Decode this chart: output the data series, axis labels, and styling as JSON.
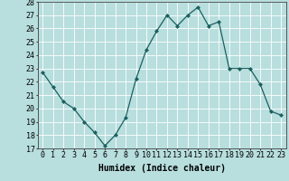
{
  "x": [
    0,
    1,
    2,
    3,
    4,
    5,
    6,
    7,
    8,
    9,
    10,
    11,
    12,
    13,
    14,
    15,
    16,
    17,
    18,
    19,
    20,
    21,
    22,
    23
  ],
  "y": [
    22.7,
    21.6,
    20.5,
    20.0,
    19.0,
    18.2,
    17.2,
    18.0,
    19.3,
    22.2,
    24.4,
    25.8,
    27.0,
    26.2,
    27.0,
    27.6,
    26.2,
    26.5,
    23.0,
    23.0,
    23.0,
    21.8,
    19.8,
    19.5
  ],
  "bg_color": "#b8dede",
  "line_color": "#1a6060",
  "marker_color": "#1a6060",
  "grid_color": "#d8f0f0",
  "xlabel": "Humidex (Indice chaleur)",
  "ylim": [
    17,
    28
  ],
  "xlim": [
    -0.5,
    23.5
  ],
  "yticks": [
    17,
    18,
    19,
    20,
    21,
    22,
    23,
    24,
    25,
    26,
    27,
    28
  ],
  "xticks": [
    0,
    1,
    2,
    3,
    4,
    5,
    6,
    7,
    8,
    9,
    10,
    11,
    12,
    13,
    14,
    15,
    16,
    17,
    18,
    19,
    20,
    21,
    22,
    23
  ],
  "xlabel_fontsize": 7,
  "tick_fontsize": 6
}
